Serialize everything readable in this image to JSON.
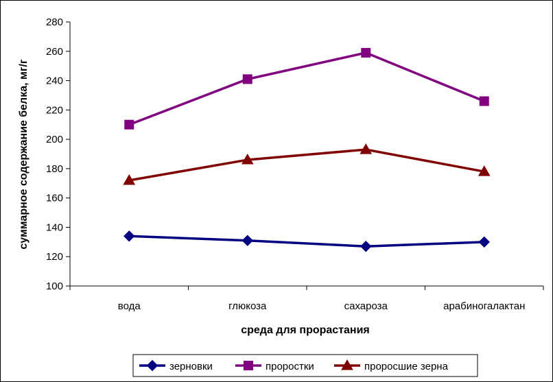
{
  "chart_data": {
    "type": "line",
    "title": "",
    "xlabel": "среда для прорастания",
    "ylabel": "суммарное содержание белка, мг/г",
    "categories": [
      "вода",
      "глюкоза",
      "сахароза",
      "арабиногалактан"
    ],
    "ylim": [
      100,
      280
    ],
    "yticks": [
      100,
      120,
      140,
      160,
      180,
      200,
      220,
      240,
      260,
      280
    ],
    "grid": false,
    "legend_position": "bottom",
    "series": [
      {
        "name": "зерновки",
        "color": "#000080",
        "marker": "diamond",
        "values": [
          134,
          131,
          127,
          130
        ]
      },
      {
        "name": "проростки",
        "color": "#800080",
        "marker": "square",
        "values": [
          210,
          241,
          259,
          226
        ]
      },
      {
        "name": "проросшие зерна",
        "color": "#800000",
        "marker": "triangle",
        "values": [
          172,
          186,
          193,
          178
        ]
      }
    ]
  }
}
